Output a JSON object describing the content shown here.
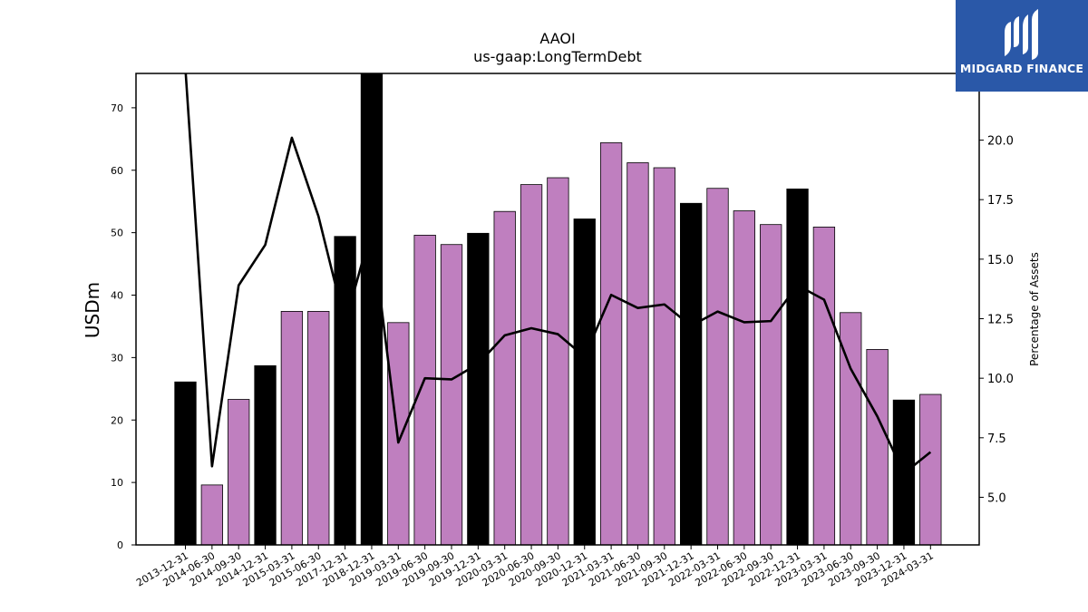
{
  "logo": {
    "text": "MIDGARD FINANCE",
    "icon": "midgard-logo-icon",
    "background": "#2a58a8"
  },
  "chart_data": {
    "type": "bar",
    "title": "AAOI",
    "subtitle": "us-gaap:LongTermDebt",
    "ylabel": "USDm",
    "y2label": "Percentage of Assets",
    "ylim": [
      0,
      75.5
    ],
    "y2lim": [
      3.0,
      22.8
    ],
    "yticks": [
      0,
      10,
      20,
      30,
      40,
      50,
      60,
      70
    ],
    "y2ticks": [
      "5.0",
      "7.5",
      "10.0",
      "12.5",
      "15.0",
      "17.5",
      "20.0"
    ],
    "grid": false,
    "legend": "none",
    "colors": {
      "quarter": "#bf7fbf",
      "year_end": "#000000",
      "line": "#000000"
    },
    "categories": [
      "2013-12-31",
      "2014-06-30",
      "2014-09-30",
      "2014-12-31",
      "2015-03-31",
      "2015-06-30",
      "2017-12-31",
      "2018-12-31",
      "2019-03-31",
      "2019-06-30",
      "2019-09-30",
      "2019-12-31",
      "2020-03-31",
      "2020-06-30",
      "2020-09-30",
      "2020-12-31",
      "2021-03-31",
      "2021-06-30",
      "2021-09-30",
      "2021-12-31",
      "2022-03-31",
      "2022-06-30",
      "2022-09-30",
      "2022-12-31",
      "2023-03-31",
      "2023-06-30",
      "2023-09-30",
      "2023-12-31",
      "2024-03-31"
    ],
    "values": [
      26.1,
      9.6,
      23.3,
      28.7,
      37.4,
      37.4,
      49.4,
      75.5,
      35.6,
      49.6,
      48.1,
      49.9,
      53.4,
      57.7,
      58.8,
      52.2,
      64.4,
      61.2,
      60.4,
      54.7,
      57.1,
      53.5,
      51.3,
      57.0,
      50.9,
      37.2,
      31.3,
      23.2,
      24.1
    ],
    "year_end": [
      true,
      false,
      false,
      true,
      false,
      false,
      true,
      true,
      false,
      false,
      false,
      true,
      false,
      false,
      false,
      true,
      false,
      false,
      false,
      true,
      false,
      false,
      false,
      true,
      false,
      false,
      false,
      true,
      false
    ],
    "line_values": [
      23.0,
      6.3,
      13.9,
      15.6,
      20.1,
      16.8,
      12.3,
      16.3,
      7.3,
      10.0,
      9.95,
      10.6,
      11.8,
      12.1,
      11.85,
      10.9,
      13.5,
      12.95,
      13.1,
      12.2,
      12.8,
      12.35,
      12.4,
      13.9,
      13.3,
      10.4,
      8.4,
      6.0,
      6.9
    ]
  }
}
